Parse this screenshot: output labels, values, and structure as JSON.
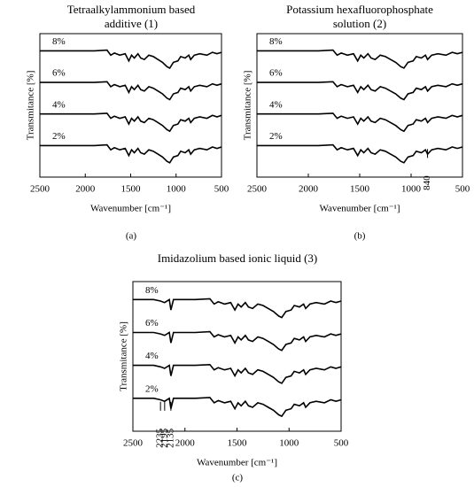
{
  "chart_data": [
    {
      "type": "line",
      "panel_label": "(a)",
      "title": [
        "Tetraalkylammonium based",
        "additive (1)"
      ],
      "xlabel": "Wavenumber [cm⁻¹]",
      "ylabel": "Transmitance [%]",
      "xlim": [
        2500,
        500
      ],
      "xticks": [
        2500,
        2000,
        1500,
        1000,
        500
      ],
      "ylim": [
        0,
        100
      ],
      "x": [
        2500,
        2200,
        1900,
        1760,
        1720,
        1680,
        1620,
        1560,
        1520,
        1490,
        1460,
        1420,
        1390,
        1350,
        1300,
        1250,
        1200,
        1150,
        1100,
        1070,
        1030,
        980,
        950,
        900,
        860,
        840,
        800,
        740,
        660,
        600,
        550,
        500
      ],
      "series": [
        {
          "name": "8%",
          "color": "#000000",
          "values": [
            88,
            88,
            88,
            88.5,
            85,
            86.5,
            85,
            86,
            81,
            85,
            83,
            86,
            83,
            82,
            85,
            84,
            82,
            80,
            77,
            76,
            80,
            81,
            84,
            83,
            85,
            82,
            85,
            86,
            85,
            87,
            86,
            87
          ]
        },
        {
          "name": "6%",
          "color": "#000000",
          "values": [
            66,
            66,
            66,
            66.5,
            63,
            64.5,
            63,
            64,
            59,
            63,
            61,
            64,
            61,
            60,
            63,
            62,
            60,
            58,
            55,
            54,
            58,
            59,
            62,
            61,
            63,
            60,
            63,
            64,
            63,
            65,
            64,
            65
          ]
        },
        {
          "name": "4%",
          "color": "#000000",
          "values": [
            44,
            44,
            44,
            44.5,
            41,
            42.5,
            41,
            42,
            37,
            41,
            39,
            42,
            39,
            38,
            41,
            40,
            38,
            36,
            33,
            32,
            36,
            37,
            40,
            39,
            41,
            38,
            41,
            42,
            41,
            43,
            42,
            43
          ]
        },
        {
          "name": "2%",
          "color": "#000000",
          "values": [
            22,
            22,
            22,
            22.5,
            19,
            20.5,
            19,
            20,
            15,
            19,
            17,
            20,
            17,
            16,
            19,
            18,
            16,
            14,
            11,
            10,
            14,
            15,
            18,
            17,
            19,
            16,
            19,
            20,
            19,
            21,
            20,
            21
          ]
        }
      ],
      "annotations": []
    },
    {
      "type": "line",
      "panel_label": "(b)",
      "title": [
        "Potassium hexafluorophosphate",
        "solution (2)"
      ],
      "xlabel": "Wavenumber [cm⁻¹]",
      "ylabel": "Transmitance [%]",
      "xlim": [
        2500,
        500
      ],
      "xticks": [
        2500,
        2000,
        1500,
        1000,
        500
      ],
      "ylim": [
        0,
        100
      ],
      "x": [
        2500,
        2200,
        1900,
        1760,
        1720,
        1680,
        1620,
        1560,
        1520,
        1490,
        1460,
        1420,
        1390,
        1350,
        1300,
        1250,
        1200,
        1150,
        1100,
        1070,
        1030,
        980,
        950,
        900,
        860,
        840,
        800,
        740,
        660,
        600,
        550,
        500
      ],
      "series": [
        {
          "name": "8%",
          "color": "#000000",
          "values": [
            88,
            88,
            88,
            88.5,
            85,
            86.5,
            85,
            86,
            81,
            85,
            83,
            86,
            83,
            82,
            85,
            84,
            82,
            80,
            77,
            76,
            80,
            81,
            84,
            83,
            85,
            82,
            85,
            86,
            85,
            87,
            86,
            87
          ]
        },
        {
          "name": "6%",
          "color": "#000000",
          "values": [
            66,
            66,
            66,
            66.5,
            63,
            64.5,
            63,
            64,
            59,
            63,
            61,
            64,
            61,
            60,
            63,
            62,
            60,
            58,
            55,
            54,
            58,
            59,
            62,
            61,
            63,
            60,
            63,
            64,
            63,
            65,
            64,
            65
          ]
        },
        {
          "name": "4%",
          "color": "#000000",
          "values": [
            44,
            44,
            44,
            44.5,
            41,
            42.5,
            41,
            42,
            37,
            41,
            39,
            42,
            39,
            38,
            41,
            40,
            38,
            36,
            33,
            32,
            36,
            37,
            40,
            39,
            41,
            38,
            41,
            42,
            41,
            43,
            42,
            43
          ]
        },
        {
          "name": "2%",
          "color": "#000000",
          "values": [
            22,
            22,
            22,
            22.5,
            19,
            20.5,
            19,
            20,
            15,
            19,
            17,
            20,
            17,
            16,
            19,
            18,
            16,
            14,
            11,
            10,
            14,
            15,
            18,
            17,
            19,
            16,
            19,
            20,
            19,
            21,
            20,
            21
          ]
        }
      ],
      "annotations": [
        {
          "text": "840",
          "x": 840
        }
      ]
    },
    {
      "type": "line",
      "panel_label": "(c)",
      "title": [
        "Imidazolium based ionic liquid (3)"
      ],
      "xlabel": "Wavenumber [cm⁻¹]",
      "ylabel": "Transmitance [%]",
      "xlim": [
        2500,
        500
      ],
      "xticks": [
        2500,
        2000,
        1500,
        1000,
        500
      ],
      "ylim": [
        0,
        100
      ],
      "x": [
        2500,
        2300,
        2235,
        2195,
        2150,
        2135,
        2110,
        1900,
        1760,
        1720,
        1680,
        1620,
        1560,
        1520,
        1490,
        1460,
        1420,
        1390,
        1350,
        1300,
        1250,
        1200,
        1150,
        1100,
        1070,
        1030,
        980,
        950,
        900,
        860,
        840,
        800,
        740,
        660,
        600,
        550,
        500
      ],
      "series": [
        {
          "name": "8%",
          "color": "#000000",
          "values": [
            88,
            88,
            87,
            86,
            88,
            81,
            88,
            88,
            88.5,
            85,
            86.5,
            85,
            86,
            81,
            85,
            83,
            86,
            83,
            82,
            85,
            84,
            82,
            80,
            77,
            76,
            80,
            81,
            84,
            83,
            85,
            82,
            85,
            86,
            85,
            87,
            86,
            87
          ]
        },
        {
          "name": "6%",
          "color": "#000000",
          "values": [
            66,
            66,
            65,
            64,
            66,
            59,
            66,
            66,
            66.5,
            63,
            64.5,
            63,
            64,
            59,
            63,
            61,
            64,
            61,
            60,
            63,
            62,
            60,
            58,
            55,
            54,
            58,
            59,
            62,
            61,
            63,
            60,
            63,
            64,
            63,
            65,
            64,
            65
          ]
        },
        {
          "name": "4%",
          "color": "#000000",
          "values": [
            44,
            44,
            43,
            42,
            44,
            37,
            44,
            44,
            44.5,
            41,
            42.5,
            41,
            42,
            37,
            41,
            39,
            42,
            39,
            38,
            41,
            40,
            38,
            36,
            33,
            32,
            36,
            37,
            40,
            39,
            41,
            38,
            41,
            42,
            41,
            43,
            42,
            43
          ]
        },
        {
          "name": "2%",
          "color": "#000000",
          "values": [
            22,
            22,
            21,
            20,
            22,
            15,
            22,
            22,
            22.5,
            19,
            20.5,
            19,
            20,
            15,
            19,
            17,
            20,
            17,
            16,
            19,
            18,
            16,
            14,
            11,
            10,
            14,
            15,
            18,
            17,
            19,
            16,
            19,
            20,
            19,
            21,
            20,
            21
          ]
        }
      ],
      "annotations": [
        {
          "text": "2235",
          "x": 2235
        },
        {
          "text": "2195",
          "x": 2195
        },
        {
          "text": "2135",
          "x": 2135
        }
      ]
    }
  ]
}
